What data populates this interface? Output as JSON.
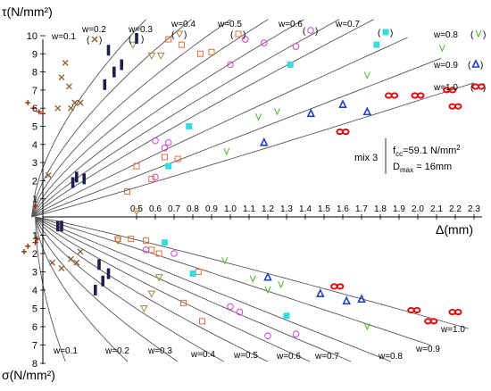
{
  "chart_data": {
    "type": "scatter",
    "title": "",
    "ylabel_top": "τ(N/mm²)",
    "ylabel_bottom": "σ(N/mm²)",
    "xlabel": "Δ(mm)",
    "xlim": [
      0,
      2.35
    ],
    "ylim_tau": [
      0,
      11
    ],
    "ylim_sigma": [
      0,
      8
    ],
    "x_ticks": [
      "0.5",
      "0.6",
      "0.7",
      "0.8",
      "0.9",
      "1.0",
      "1.1",
      "1.2",
      "1.3",
      "1.4",
      "1.5",
      "1.6",
      "1.7",
      "1.8",
      "1.9",
      "2.0",
      "2.1",
      "2.2",
      "2.3"
    ],
    "tau_ticks": [
      "10",
      "9",
      "8",
      "7",
      "6",
      "5",
      "4",
      "3",
      "2",
      "1"
    ],
    "sigma_ticks": [
      "1",
      "2",
      "3",
      "4",
      "5",
      "6",
      "7",
      "8"
    ],
    "annotation": {
      "mix": "mix 3",
      "fcc": "f",
      "fcc_sub": "cc",
      "fcc_val": "=59.1 N/mm",
      "fcc_sup": "2",
      "dmax": "D",
      "dmax_sub": "max",
      "dmax_val": " = 16mm"
    },
    "crack_widths": [
      "0.1",
      "0.2",
      "0.3",
      "0.4",
      "0.5",
      "0.6",
      "0.7",
      "0.8",
      "0.9",
      "1.0"
    ],
    "top_labels": [
      "w=0.1",
      "w=0.2",
      "w=0.3",
      "w=0.4",
      "w=0.5",
      "w=0.6",
      "w=0.7",
      "w=0.8",
      "w=0.9",
      "w=1.0"
    ],
    "top_label_symbols": [
      "",
      "x",
      "▌",
      "▽",
      "□",
      "○",
      "■",
      "v",
      "Δ",
      "∞"
    ],
    "bottom_labels": [
      "w=0.1",
      "w=0.2",
      "w=0.3",
      "w=0.4",
      "w=0.5",
      "w=0.6",
      "w=0.7",
      "w=0.8",
      "w=0.9",
      "w=1.0"
    ],
    "series_tau": [
      {
        "w": "0.1",
        "marker": "plus",
        "color": "#8b2500",
        "points": [
          [
            -0.08,
            6.3
          ],
          [
            -0.05,
            6.0
          ],
          [
            -0.02,
            5.8
          ],
          [
            0.0,
            5.7
          ],
          [
            -0.04,
            0.6
          ]
        ]
      },
      {
        "w": "0.2",
        "marker": "x",
        "color": "#8b5a2b",
        "points": [
          [
            0.12,
            8.5
          ],
          [
            0.1,
            7.7
          ],
          [
            0.14,
            7.2
          ],
          [
            0.17,
            6.3
          ],
          [
            0.2,
            6.3
          ],
          [
            0.08,
            6.0
          ],
          [
            0.15,
            6.0
          ],
          [
            0.03,
            2.3
          ]
        ]
      },
      {
        "w": "0.3",
        "marker": "bar",
        "color": "#1f1f4d",
        "points": [
          [
            0.35,
            9.2
          ],
          [
            0.42,
            8.4
          ],
          [
            0.38,
            8.0
          ],
          [
            0.33,
            7.3
          ],
          [
            0.18,
            2.2
          ],
          [
            0.22,
            2.1
          ],
          [
            0.16,
            1.9
          ]
        ]
      },
      {
        "w": "0.4",
        "marker": "tri_down",
        "color": "#9a8a4a",
        "points": [
          [
            0.48,
            9.5
          ],
          [
            0.58,
            8.9
          ],
          [
            0.63,
            8.9
          ],
          [
            0.5,
            0.3
          ]
        ]
      },
      {
        "w": "0.5",
        "marker": "square",
        "color": "#e07040",
        "points": [
          [
            0.67,
            9.8
          ],
          [
            0.74,
            9.5
          ],
          [
            0.84,
            9.0
          ],
          [
            0.9,
            9.1
          ],
          [
            0.65,
            3.3
          ],
          [
            0.72,
            3.2
          ],
          [
            0.45,
            1.4
          ],
          [
            0.58,
            2.1
          ],
          [
            0.5,
            2.8
          ]
        ]
      },
      {
        "w": "0.6",
        "marker": "circle",
        "color": "#d040d0",
        "points": [
          [
            1.08,
            9.8
          ],
          [
            1.18,
            9.6
          ],
          [
            1.35,
            9.4
          ],
          [
            1.0,
            8.4
          ],
          [
            0.6,
            4.2
          ],
          [
            0.65,
            3.8
          ],
          [
            0.67,
            4.1
          ],
          [
            0.6,
            2.2
          ]
        ]
      },
      {
        "w": "0.7",
        "marker": "filled_square",
        "color": "#33dddd",
        "points": [
          [
            1.78,
            9.5
          ],
          [
            1.32,
            8.4
          ],
          [
            0.78,
            5.0
          ],
          [
            0.67,
            2.8
          ]
        ]
      },
      {
        "w": "0.8",
        "marker": "v",
        "color": "#55bb33",
        "points": [
          [
            2.13,
            9.3
          ],
          [
            1.73,
            7.8
          ],
          [
            1.15,
            5.5
          ],
          [
            1.25,
            5.8
          ],
          [
            0.98,
            3.6
          ]
        ]
      },
      {
        "w": "0.9",
        "marker": "delta",
        "color": "#2040c0",
        "points": [
          [
            1.43,
            5.7
          ],
          [
            1.6,
            6.2
          ],
          [
            1.73,
            5.8
          ],
          [
            1.18,
            4.1
          ]
        ]
      },
      {
        "w": "1.0",
        "marker": "infinity",
        "color": "#dd1111",
        "points": [
          [
            1.86,
            6.7
          ],
          [
            2.0,
            6.7
          ],
          [
            2.17,
            7.0
          ],
          [
            2.2,
            6.1
          ],
          [
            1.6,
            4.7
          ]
        ]
      }
    ],
    "series_sigma": [
      {
        "w": "0.1",
        "marker": "plus",
        "color": "#8b2500",
        "points": [
          [
            -0.08,
            1.6
          ],
          [
            -0.04,
            1.4
          ],
          [
            -0.1,
            1.9
          ],
          [
            -0.03,
            1.2
          ]
        ]
      },
      {
        "w": "0.2",
        "marker": "x",
        "color": "#8b5a2b",
        "points": [
          [
            0.15,
            2.3
          ],
          [
            0.18,
            2.5
          ],
          [
            0.1,
            2.8
          ],
          [
            0.05,
            2.5
          ],
          [
            0.2,
            1.9
          ]
        ]
      },
      {
        "w": "0.3",
        "marker": "bar",
        "color": "#1f1f4d",
        "points": [
          [
            0.08,
            0.5
          ],
          [
            0.1,
            0.5
          ],
          [
            0.3,
            2.6
          ],
          [
            0.35,
            3.1
          ],
          [
            0.32,
            3.5
          ],
          [
            0.28,
            4.0
          ]
        ]
      },
      {
        "w": "0.4",
        "marker": "tri_down",
        "color": "#9a8a4a",
        "points": [
          [
            0.4,
            1.3
          ],
          [
            0.62,
            3.3
          ],
          [
            0.58,
            4.2
          ],
          [
            0.54,
            5.0
          ]
        ]
      },
      {
        "w": "0.5",
        "marker": "square",
        "color": "#e07040",
        "points": [
          [
            0.4,
            1.2
          ],
          [
            0.47,
            1.2
          ],
          [
            0.55,
            1.3
          ],
          [
            0.58,
            1.8
          ],
          [
            0.62,
            2.0
          ],
          [
            0.83,
            3.0
          ],
          [
            0.75,
            4.7
          ],
          [
            0.85,
            5.7
          ]
        ]
      },
      {
        "w": "0.6",
        "marker": "circle",
        "color": "#d040d0",
        "points": [
          [
            0.55,
            1.8
          ],
          [
            0.7,
            2.0
          ],
          [
            1.0,
            4.9
          ],
          [
            1.05,
            5.2
          ],
          [
            1.2,
            6.5
          ],
          [
            1.35,
            6.4
          ]
        ]
      },
      {
        "w": "0.7",
        "marker": "filled_square",
        "color": "#33dddd",
        "points": [
          [
            0.65,
            1.4
          ],
          [
            0.8,
            3.1
          ],
          [
            1.3,
            5.4
          ]
        ]
      },
      {
        "w": "0.8",
        "marker": "v",
        "color": "#55bb33",
        "points": [
          [
            0.97,
            2.4
          ],
          [
            1.12,
            3.4
          ],
          [
            1.2,
            4.0
          ],
          [
            1.27,
            3.7
          ],
          [
            1.73,
            6.0
          ]
        ]
      },
      {
        "w": "0.9",
        "marker": "delta",
        "color": "#2040c0",
        "points": [
          [
            1.2,
            3.3
          ],
          [
            1.48,
            4.2
          ],
          [
            1.62,
            4.6
          ],
          [
            1.7,
            4.5
          ]
        ]
      },
      {
        "w": "1.0",
        "marker": "infinity",
        "color": "#dd1111",
        "points": [
          [
            1.57,
            3.8
          ],
          [
            1.98,
            5.1
          ],
          [
            2.07,
            5.7
          ],
          [
            2.2,
            5.2
          ]
        ]
      }
    ]
  }
}
